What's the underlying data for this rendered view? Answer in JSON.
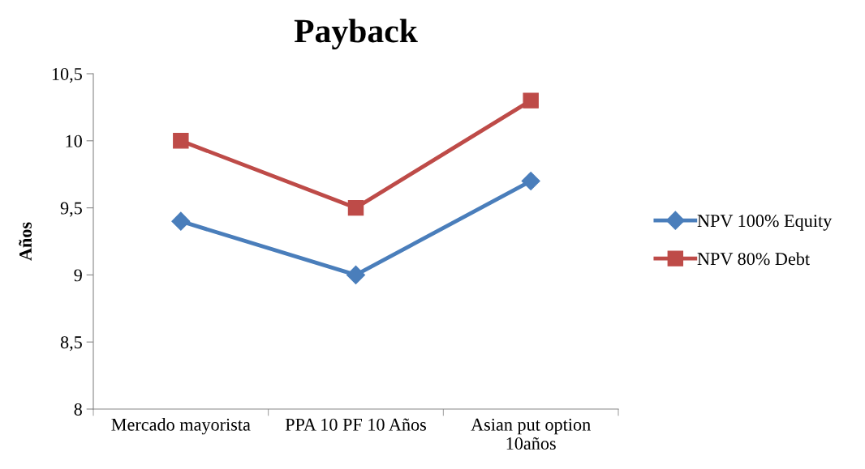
{
  "chart_data": {
    "type": "line",
    "title": "Payback",
    "ylabel": "Años",
    "categories": [
      "Mercado mayorista",
      "PPA 10 PF 10 Años",
      "Asian put option\n10años"
    ],
    "series": [
      {
        "name": "NPV 100% Equity",
        "color": "#4a7ebb",
        "marker": "diamond",
        "values": [
          9.4,
          9.0,
          9.7
        ]
      },
      {
        "name": "NPV 80% Debt",
        "color": "#be4b48",
        "marker": "square",
        "values": [
          10.0,
          9.5,
          10.3
        ]
      }
    ],
    "ylim": [
      8,
      10.5
    ],
    "yticks": [
      8,
      {
        "value": 8.5,
        "label": "8,5"
      },
      9,
      {
        "value": 9.5,
        "label": "9,5"
      },
      10,
      {
        "value": 10.5,
        "label": "10,5"
      }
    ],
    "grid": false,
    "legend": "right",
    "line_style": "solid"
  }
}
